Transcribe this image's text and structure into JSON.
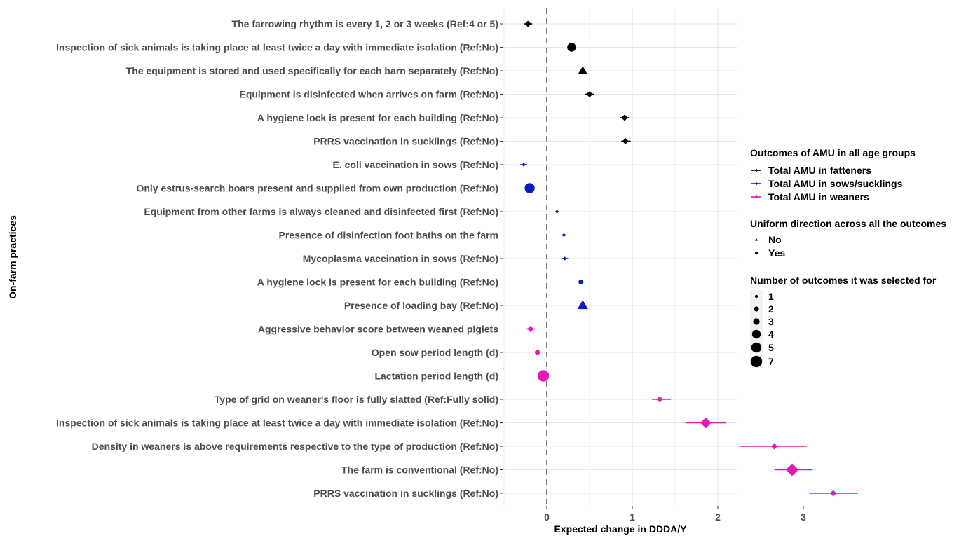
{
  "chart_data": {
    "type": "scatter",
    "subtype": "dot-and-whisker",
    "ylabel": "On-farm practices",
    "xlabel": "Expected change in DDDA/Y",
    "xlim": [
      -0.35,
      3.35
    ],
    "x_ticks": [
      0,
      1,
      2,
      3
    ],
    "reference_line": {
      "x": 0,
      "style": "dashed"
    },
    "grid": true,
    "legend_placement": "right",
    "colors": {
      "fatteners": "#000000",
      "sows": "#0a1fb8",
      "weaners": "#e21ab8"
    },
    "categories": [
      "The farrowing rhythm is every 1, 2 or 3 weeks (Ref:4 or 5)",
      "Inspection of sick animals is taking place at least twice a day with immediate isolation (Ref:No)",
      "The equipment is stored and used specifically for each barn separately (Ref:No)",
      "Equipment is disinfected when arrives on farm (Ref:No)",
      "A hygiene lock is present for each building (Ref:No)",
      "PRRS vaccination in sucklings (Ref:No)",
      "E. coli vaccination in sows (Ref:No)",
      "Only estrus-search boars present and supplied from own production (Ref:No)",
      "Equipment from other farms is always cleaned and disinfected first (Ref:No)",
      "Presence of disinfection foot baths on the farm",
      "Mycoplasma vaccination in sows (Ref:No)",
      "A hygiene lock is present for each building (Ref:No)",
      "Presence of loading bay (Ref:No)",
      "Aggressive behavior score between weaned piglets",
      "Open sow period length (d)",
      "Lactation period length (d)",
      "Type of grid on weaner's floor is fully slatted (Ref:Fully solid)",
      "Inspection of sick animals is taking place at least twice a day with immediate isolation (Ref:No)",
      "Density in weaners is above requirements respective to the type of production (Ref:No)",
      "The farm is conventional (Ref:No)",
      "PRRS vaccination in sucklings (Ref:No)"
    ],
    "points": [
      {
        "estimate": -0.22,
        "lower": -0.27,
        "upper": -0.17,
        "outcome": "fatteners",
        "shape": "diamond",
        "n_outcomes": 2
      },
      {
        "estimate": 0.29,
        "lower": 0.29,
        "upper": 0.29,
        "outcome": "fatteners",
        "shape": "circle",
        "n_outcomes": 4
      },
      {
        "estimate": 0.42,
        "lower": 0.42,
        "upper": 0.42,
        "outcome": "fatteners",
        "shape": "triangle",
        "n_outcomes": 4
      },
      {
        "estimate": 0.5,
        "lower": 0.45,
        "upper": 0.55,
        "outcome": "fatteners",
        "shape": "diamond",
        "n_outcomes": 2
      },
      {
        "estimate": 0.91,
        "lower": 0.86,
        "upper": 0.96,
        "outcome": "fatteners",
        "shape": "diamond",
        "n_outcomes": 2
      },
      {
        "estimate": 0.92,
        "lower": 0.87,
        "upper": 0.98,
        "outcome": "fatteners",
        "shape": "diamond",
        "n_outcomes": 2
      },
      {
        "estimate": -0.27,
        "lower": -0.31,
        "upper": -0.23,
        "outcome": "sows",
        "shape": "diamond",
        "n_outcomes": 1
      },
      {
        "estimate": -0.2,
        "lower": -0.2,
        "upper": -0.2,
        "outcome": "sows",
        "shape": "circle",
        "n_outcomes": 5
      },
      {
        "estimate": 0.12,
        "lower": 0.12,
        "upper": 0.12,
        "outcome": "sows",
        "shape": "diamond",
        "n_outcomes": 1
      },
      {
        "estimate": 0.2,
        "lower": 0.17,
        "upper": 0.23,
        "outcome": "sows",
        "shape": "diamond",
        "n_outcomes": 1
      },
      {
        "estimate": 0.21,
        "lower": 0.17,
        "upper": 0.25,
        "outcome": "sows",
        "shape": "diamond",
        "n_outcomes": 1
      },
      {
        "estimate": 0.4,
        "lower": 0.4,
        "upper": 0.4,
        "outcome": "sows",
        "shape": "circle",
        "n_outcomes": 2
      },
      {
        "estimate": 0.42,
        "lower": 0.42,
        "upper": 0.42,
        "outcome": "sows",
        "shape": "triangle",
        "n_outcomes": 5
      },
      {
        "estimate": -0.19,
        "lower": -0.24,
        "upper": -0.14,
        "outcome": "weaners",
        "shape": "diamond",
        "n_outcomes": 2
      },
      {
        "estimate": -0.11,
        "lower": -0.11,
        "upper": -0.11,
        "outcome": "weaners",
        "shape": "circle",
        "n_outcomes": 2
      },
      {
        "estimate": -0.04,
        "lower": -0.04,
        "upper": -0.04,
        "outcome": "weaners",
        "shape": "circle",
        "n_outcomes": 7
      },
      {
        "estimate": 1.32,
        "lower": 1.23,
        "upper": 1.45,
        "outcome": "weaners",
        "shape": "diamond",
        "n_outcomes": 2
      },
      {
        "estimate": 1.86,
        "lower": 1.62,
        "upper": 2.1,
        "outcome": "weaners",
        "shape": "diamond",
        "n_outcomes": 4
      },
      {
        "estimate": 2.66,
        "lower": 2.26,
        "upper": 3.04,
        "outcome": "weaners",
        "shape": "diamond",
        "n_outcomes": 2
      },
      {
        "estimate": 2.87,
        "lower": 2.66,
        "upper": 3.11,
        "outcome": "weaners",
        "shape": "diamond",
        "n_outcomes": 5
      },
      {
        "estimate": 3.35,
        "lower": 3.07,
        "upper": 3.64,
        "outcome": "weaners",
        "shape": "diamond",
        "n_outcomes": 2
      }
    ],
    "legend": {
      "color_title": "Outcomes of AMU in all age groups",
      "color_items": [
        {
          "label": "Total AMU in fatteners",
          "key": "fatteners"
        },
        {
          "label": "Total AMU in sows/sucklings",
          "key": "sows"
        },
        {
          "label": "Total AMU in weaners",
          "key": "weaners"
        }
      ],
      "shape_title": "Uniform direction across all the outcomes",
      "shape_items": [
        {
          "label": "No",
          "shape": "triangle"
        },
        {
          "label": "Yes",
          "shape": "diamond"
        }
      ],
      "size_title": "Number of outcomes it was selected for",
      "size_items": [
        {
          "label": "1",
          "n": 1
        },
        {
          "label": "2",
          "n": 2
        },
        {
          "label": "3",
          "n": 3
        },
        {
          "label": "4",
          "n": 4
        },
        {
          "label": "5",
          "n": 5
        },
        {
          "label": "7",
          "n": 7
        }
      ]
    }
  }
}
